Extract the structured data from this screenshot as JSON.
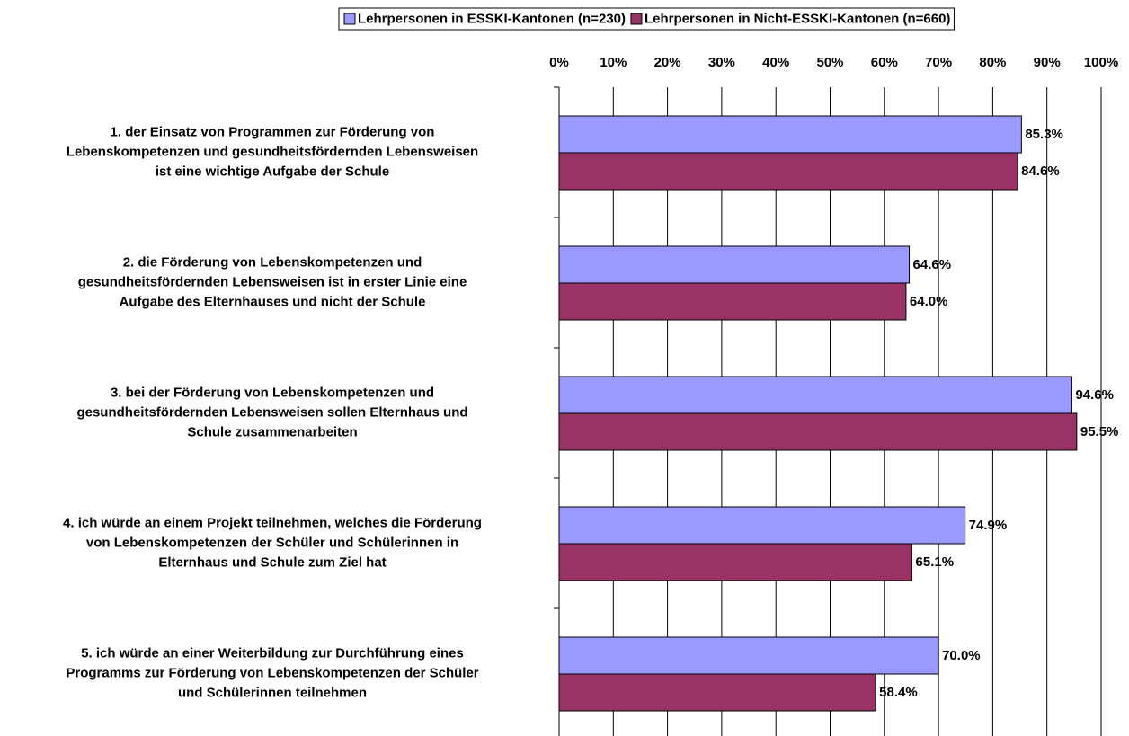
{
  "chart_data": {
    "type": "bar",
    "orientation": "horizontal",
    "categories": [
      [
        "1. der Einsatz von Programmen zur Förderung von",
        "Lebenskompetenzen und gesundheitsfördernden Lebensweisen",
        "ist eine wichtige Aufgabe der Schule"
      ],
      [
        "2. die Förderung von Lebenskompetenzen und",
        "gesundheitsfördernden Lebensweisen ist in erster Linie eine",
        "Aufgabe des Elternhauses und nicht der Schule"
      ],
      [
        "3. bei der Förderung von Lebenskompetenzen und",
        "gesundheitsfördernden Lebensweisen sollen Elternhaus und",
        "Schule zusammenarbeiten"
      ],
      [
        "4. ich würde an einem Projekt teilnehmen, welches die Förderung",
        "von Lebenskompetenzen der Schüler und Schülerinnen in",
        "Elternhaus und Schule zum Ziel hat"
      ],
      [
        "5. ich würde an einer Weiterbildung zur Durchführung eines",
        "Programms zur Förderung von Lebenskompetenzen der Schüler",
        "und Schülerinnen teilnehmen"
      ]
    ],
    "series": [
      {
        "name": "Lehrpersonen in ESSKI-Kantonen (n=230)",
        "color": "#9999ff",
        "values": [
          85.3,
          64.6,
          94.6,
          74.9,
          70.0
        ],
        "value_labels": [
          "85.3%",
          "64.6%",
          "94.6%",
          "74.9%",
          "70.0%"
        ]
      },
      {
        "name": "Lehrpersonen in Nicht-ESSKI-Kantonen (n=660)",
        "color": "#993366",
        "values": [
          84.6,
          64.0,
          95.5,
          65.1,
          58.4
        ],
        "value_labels": [
          "84.6%",
          "64.0%",
          "95.5%",
          "65.1%",
          "58.4%"
        ]
      }
    ],
    "xlim": [
      0,
      100
    ],
    "xticks": [
      {
        "value": 0,
        "label": "0%"
      },
      {
        "value": 10,
        "label": "10%"
      },
      {
        "value": 20,
        "label": "20%"
      },
      {
        "value": 30,
        "label": "30%"
      },
      {
        "value": 40,
        "label": "40%"
      },
      {
        "value": 50,
        "label": "50%"
      },
      {
        "value": 60,
        "label": "60%"
      },
      {
        "value": 70,
        "label": "70%"
      },
      {
        "value": 80,
        "label": "80%"
      },
      {
        "value": 90,
        "label": "90%"
      },
      {
        "value": 100,
        "label": "100%"
      }
    ],
    "grid": true,
    "legend": "top"
  }
}
